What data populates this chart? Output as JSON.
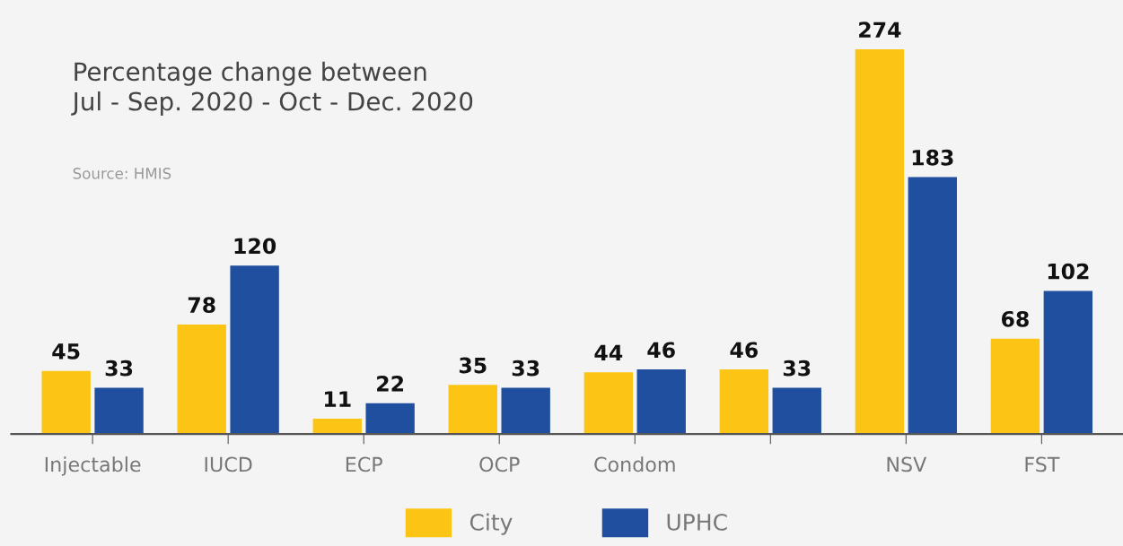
{
  "chart_data": {
    "type": "bar",
    "title": "Percentage change between\nJul - Sep. 2020 - Oct - Dec. 2020",
    "annotations": [
      "Source: HMIS"
    ],
    "categories": [
      "Injectable",
      "IUCD",
      "ECP",
      "OCP",
      "Condom",
      null,
      "NSV",
      "FST"
    ],
    "series": [
      {
        "name": "City",
        "color": "#fcc414",
        "values": [
          45,
          78,
          11,
          35,
          44,
          46,
          274,
          68
        ]
      },
      {
        "name": "UPHC",
        "color": "#1f4f9e",
        "values": [
          33,
          120,
          22,
          33,
          46,
          33,
          183,
          102
        ]
      }
    ],
    "data_labels": true,
    "legend": "bottom",
    "tick_labels": "x",
    "grid": false
  }
}
